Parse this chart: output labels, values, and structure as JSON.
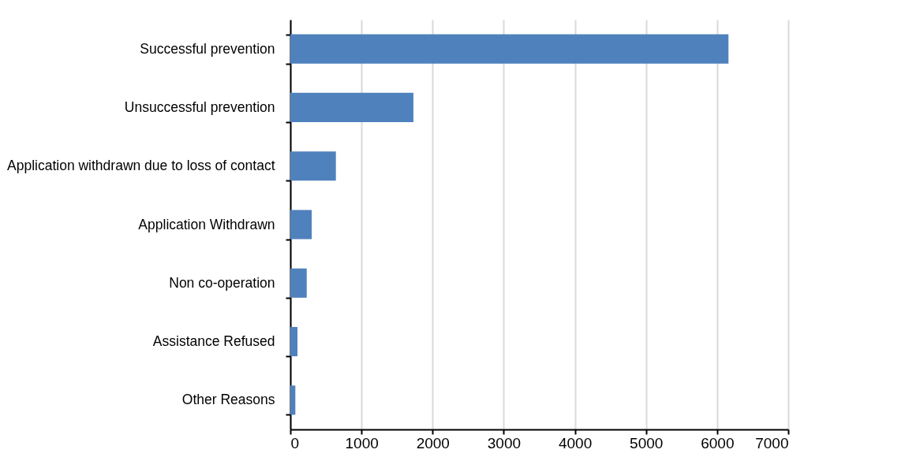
{
  "chart_data": {
    "type": "bar",
    "orientation": "horizontal",
    "categories": [
      "Successful prevention",
      "Unsuccessful prevention",
      "Application withdrawn due to loss of contact",
      "Application Withdrawn",
      "Non co-operation",
      "Assistance Refused",
      "Other Reasons"
    ],
    "values": [
      6160,
      1730,
      640,
      300,
      230,
      100,
      70
    ],
    "color": "#4f81bd",
    "xlim": [
      0,
      7000
    ],
    "xticks": [
      0,
      1000,
      2000,
      3000,
      4000,
      5000,
      6000,
      7000
    ],
    "grid": "x"
  }
}
